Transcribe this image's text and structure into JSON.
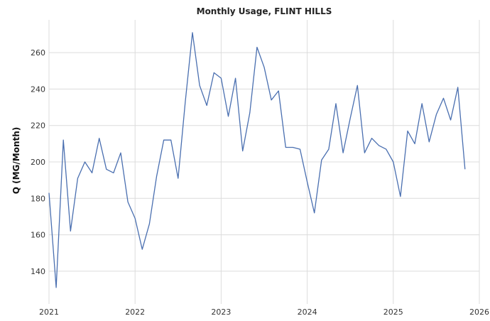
{
  "chart_data": {
    "type": "line",
    "title": "Monthly Usage, FLINT HILLS",
    "xlabel": "",
    "ylabel": "Q (MG/Month)",
    "xlim": [
      "2021-01",
      "2026-01"
    ],
    "ylim": [
      122,
      278
    ],
    "x_ticks": [
      "2021",
      "2022",
      "2023",
      "2024",
      "2025",
      "2026"
    ],
    "y_ticks": [
      140,
      160,
      180,
      200,
      220,
      240,
      260
    ],
    "grid": true,
    "line_color": "#4a6fb0",
    "x": [
      "2021-01",
      "2021-02",
      "2021-03",
      "2021-04",
      "2021-05",
      "2021-06",
      "2021-07",
      "2021-08",
      "2021-09",
      "2021-10",
      "2021-11",
      "2021-12",
      "2022-01",
      "2022-02",
      "2022-03",
      "2022-04",
      "2022-05",
      "2022-06",
      "2022-07",
      "2022-08",
      "2022-09",
      "2022-10",
      "2022-11",
      "2022-12",
      "2023-01",
      "2023-02",
      "2023-03",
      "2023-04",
      "2023-05",
      "2023-06",
      "2023-07",
      "2023-08",
      "2023-09",
      "2023-10",
      "2023-11",
      "2023-12",
      "2024-01",
      "2024-02",
      "2024-03",
      "2024-04",
      "2024-05",
      "2024-06",
      "2024-07",
      "2024-08",
      "2024-09",
      "2024-10",
      "2024-11",
      "2024-12",
      "2025-01",
      "2025-02",
      "2025-03",
      "2025-04",
      "2025-05",
      "2025-06",
      "2025-07",
      "2025-08",
      "2025-09",
      "2025-10",
      "2025-11"
    ],
    "series": [
      {
        "values": [
          183,
          131,
          212,
          162,
          191,
          200,
          194,
          213,
          196,
          194,
          205,
          178,
          169,
          152,
          166,
          192,
          212,
          212,
          191,
          233,
          271,
          242,
          231,
          249,
          246,
          225,
          246,
          206,
          227,
          263,
          252,
          234,
          239,
          208,
          208,
          207,
          189,
          172,
          201,
          207,
          232,
          205,
          224,
          242,
          205,
          213,
          209,
          207,
          200,
          181,
          217,
          210,
          232,
          211,
          226,
          235,
          223,
          241,
          196
        ]
      }
    ]
  }
}
